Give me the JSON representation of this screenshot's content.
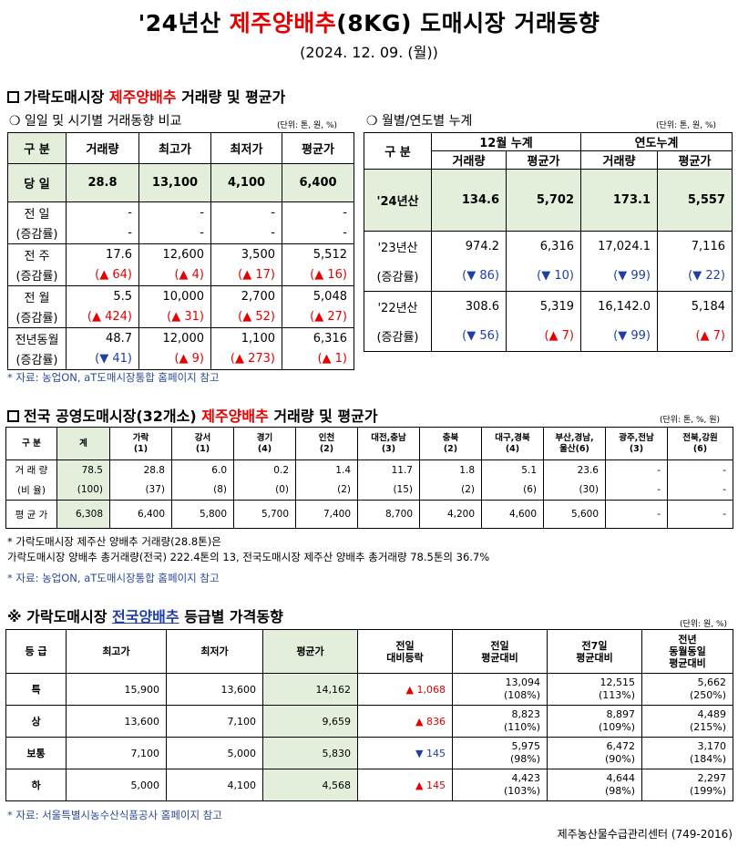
{
  "title": {
    "prefix": "'24년산 ",
    "highlight": "제주양배추",
    "suffix": "(8KG) 도매시장 거래동향"
  },
  "date": "(2024. 12. 09. (월))",
  "section1": {
    "prefix": "가락도매시장 ",
    "highlight": "제주양배추",
    "suffix": " 거래량 및 평균가"
  },
  "daily": {
    "subtitle": "❍ 일일 및 시기별 거래동향 비교",
    "unit": "(단위: 톤, 원, %)",
    "headers": [
      "구  분",
      "거래량",
      "최고가",
      "최저가",
      "평균가"
    ],
    "today": {
      "label": "당  일",
      "values": [
        "28.8",
        "13,100",
        "4,100",
        "6,400"
      ]
    },
    "rows": [
      {
        "label": "전  일",
        "sub": "(증감률)",
        "values": [
          "-",
          "-",
          "-",
          "-"
        ],
        "changes": [
          "-",
          "-",
          "-",
          "-"
        ],
        "dirs": [
          "",
          "",
          "",
          ""
        ]
      },
      {
        "label": "전  주",
        "sub": "(증감률)",
        "values": [
          "17.6",
          "12,600",
          "3,500",
          "5,512"
        ],
        "changes": [
          "(▲ 64)",
          "(▲ 4)",
          "(▲ 17)",
          "(▲ 16)"
        ],
        "dirs": [
          "up",
          "up",
          "up",
          "up"
        ]
      },
      {
        "label": "전  월",
        "sub": "(증감률)",
        "values": [
          "5.5",
          "10,000",
          "2,700",
          "5,048"
        ],
        "changes": [
          "(▲ 424)",
          "(▲ 31)",
          "(▲ 52)",
          "(▲ 27)"
        ],
        "dirs": [
          "up",
          "up",
          "up",
          "up"
        ]
      },
      {
        "label": "전년동월",
        "sub": "(증감률)",
        "values": [
          "48.7",
          "12,000",
          "1,100",
          "6,316"
        ],
        "changes": [
          "(▼ 41)",
          "(▲ 9)",
          "(▲ 273)",
          "(▲ 1)"
        ],
        "dirs": [
          "down",
          "up",
          "up",
          "up"
        ]
      }
    ]
  },
  "cumulative": {
    "subtitle": "❍ 월별/연도별 누계",
    "unit": "(단위: 톤, 원, %)",
    "header_label": "구  분",
    "group_headers": [
      "12월 누계",
      "연도누계"
    ],
    "sub_headers": [
      "거래량",
      "평균가",
      "거래량",
      "평균가"
    ],
    "current": {
      "label": "'24년산",
      "values": [
        "134.6",
        "5,702",
        "173.1",
        "5,557"
      ]
    },
    "rows": [
      {
        "label": "'23년산",
        "sub": "(증감률)",
        "values": [
          "974.2",
          "6,316",
          "17,024.1",
          "7,116"
        ],
        "changes": [
          "(▼ 86)",
          "(▼ 10)",
          "(▼ 99)",
          "(▼ 22)"
        ],
        "dirs": [
          "down",
          "down",
          "down",
          "down"
        ]
      },
      {
        "label": "'22년산",
        "sub": "(증감률)",
        "values": [
          "308.6",
          "5,319",
          "16,142.0",
          "5,184"
        ],
        "changes": [
          "(▼ 56)",
          "(▲ 7)",
          "(▼ 99)",
          "(▲ 7)"
        ],
        "dirs": [
          "down",
          "up",
          "down",
          "up"
        ]
      }
    ]
  },
  "note1": "* 자료: 농업ON, aT도매시장통합 홈페이지 참고",
  "section2": {
    "prefix": "전국 공영도매시장(32개소) ",
    "highlight": "제주양배추",
    "suffix": " 거래량 및 평균가"
  },
  "national": {
    "unit": "(단위: 톤, %, 원)",
    "headers": [
      {
        "l1": "구  분",
        "l2": ""
      },
      {
        "l1": "계",
        "l2": ""
      },
      {
        "l1": "가락",
        "l2": "(1)"
      },
      {
        "l1": "강서",
        "l2": "(1)"
      },
      {
        "l1": "경기",
        "l2": "(4)"
      },
      {
        "l1": "인천",
        "l2": "(2)"
      },
      {
        "l1": "대전,충남",
        "l2": "(3)"
      },
      {
        "l1": "충북",
        "l2": "(2)"
      },
      {
        "l1": "대구,경북",
        "l2": "(4)"
      },
      {
        "l1": "부산,경남,",
        "l2": "울산(6)"
      },
      {
        "l1": "광주,전남",
        "l2": "(3)"
      },
      {
        "l1": "전북,강원",
        "l2": "(6)"
      }
    ],
    "volume": {
      "label": "거 래 량",
      "values": [
        "78.5",
        "28.8",
        "6.0",
        "0.2",
        "1.4",
        "11.7",
        "1.8",
        "5.1",
        "23.6",
        "-",
        "-"
      ]
    },
    "ratio": {
      "label": "(비  율)",
      "values": [
        "(100)",
        "(37)",
        "(8)",
        "(0)",
        "(2)",
        "(15)",
        "(2)",
        "(6)",
        "(30)",
        "-",
        "-"
      ]
    },
    "price": {
      "label": "평 균 가",
      "values": [
        "6,308",
        "6,400",
        "5,800",
        "5,700",
        "7,400",
        "8,700",
        "4,200",
        "4,600",
        "5,600",
        "-",
        "-"
      ]
    }
  },
  "note2_line1": "* 가락도매시장 제주산 양배추 거래량(28.8톤)은",
  "note2_line2": "  가락도매시장 양배추 총거래량(전국) 222.4톤의 13, 전국도매시장 제주산 양배추 총거래량 78.5톤의 36.7%",
  "note3": "* 자료: 농업ON, aT도매시장통합 홈페이지 참고",
  "section3": {
    "prefix": "※ 가락도매시장 ",
    "highlight": "전국양배추",
    "suffix": " 등급별 가격동향"
  },
  "grade": {
    "unit": "(단위: 원, %)",
    "headers": [
      [
        "등  급"
      ],
      [
        "최고가"
      ],
      [
        "최저가"
      ],
      [
        "평균가"
      ],
      [
        "전일",
        "대비등락"
      ],
      [
        "전일",
        "평균대비"
      ],
      [
        "전7일",
        "평균대비"
      ],
      [
        "전년",
        "동월동일",
        "평균대비"
      ]
    ],
    "rows": [
      {
        "grade": "특",
        "max": "15,900",
        "min": "13,600",
        "avg": "14,162",
        "change": "▲ 1,068",
        "dir": "up",
        "prev_day": "13,094",
        "prev_day_pct": "(108%)",
        "prev_week": "12,515",
        "prev_week_pct": "(113%)",
        "prev_year": "5,662",
        "prev_year_pct": "(250%)"
      },
      {
        "grade": "상",
        "max": "13,600",
        "min": "7,100",
        "avg": "9,659",
        "change": "▲ 836",
        "dir": "up",
        "prev_day": "8,823",
        "prev_day_pct": "(110%)",
        "prev_week": "8,897",
        "prev_week_pct": "(109%)",
        "prev_year": "4,489",
        "prev_year_pct": "(215%)"
      },
      {
        "grade": "보통",
        "max": "7,100",
        "min": "5,000",
        "avg": "5,830",
        "change": "▼ 145",
        "dir": "down",
        "prev_day": "5,975",
        "prev_day_pct": "(98%)",
        "prev_week": "6,472",
        "prev_week_pct": "(90%)",
        "prev_year": "3,170",
        "prev_year_pct": "(184%)"
      },
      {
        "grade": "하",
        "max": "5,000",
        "min": "4,100",
        "avg": "4,568",
        "change": "▲ 145",
        "dir": "up",
        "prev_day": "4,423",
        "prev_day_pct": "(103%)",
        "prev_week": "4,644",
        "prev_week_pct": "(98%)",
        "prev_year": "2,297",
        "prev_year_pct": "(199%)"
      }
    ]
  },
  "note4": "* 자료: 서울특별시농수산식품공사 홈페이지 참고",
  "footer": "제주농산물수급관리센터 (749-2016)",
  "colors": {
    "highlight_red": "#e60000",
    "highlight_blue": "#1f3fa8",
    "green_fill": "#e3eedb"
  }
}
